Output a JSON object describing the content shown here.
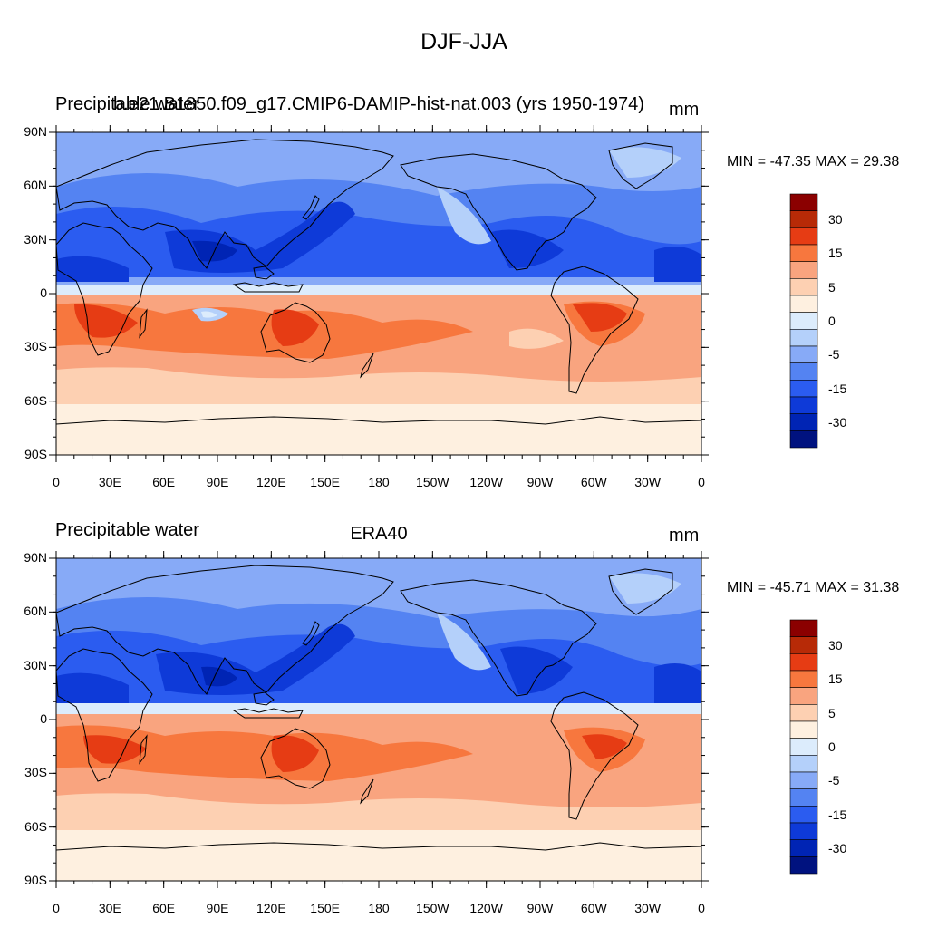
{
  "main_title": "DJF-JJA",
  "panels": [
    {
      "left_label": "Precipitable water",
      "center_label": "b.e21.B1850.f09_g17.CMIP6-DAMIP-hist-nat.003 (yrs 1950-1974)",
      "right_label": "mm",
      "minmax": "MIN = -47.35 MAX =  29.38"
    },
    {
      "left_label": "Precipitable water",
      "center_label": "ERA40",
      "right_label": "mm",
      "minmax": "MIN = -45.71 MAX =  31.38"
    }
  ],
  "x_ticks": [
    "0",
    "30E",
    "60E",
    "90E",
    "120E",
    "150E",
    "180",
    "150W",
    "120W",
    "90W",
    "60W",
    "30W",
    "0"
  ],
  "y_ticks": [
    "90N",
    "60N",
    "30N",
    "0",
    "30S",
    "60S",
    "90S"
  ],
  "colorbar": {
    "labels": [
      "30",
      "15",
      "5",
      "0",
      "-5",
      "-15",
      "-30"
    ],
    "colors": [
      "#8b0000",
      "#b72a07",
      "#e63c14",
      "#f7773e",
      "#f9a47f",
      "#fdd0b2",
      "#fef0e0",
      "#dcecfc",
      "#b4d0fa",
      "#87aaf7",
      "#5483f2",
      "#2b5cf0",
      "#0e3ad8",
      "#0024b4",
      "#00127f"
    ]
  },
  "legend_colors": {
    "land_outline": "#000000",
    "tropical_positive": "#e63c14",
    "northern_negative": "#2b5cf0"
  }
}
